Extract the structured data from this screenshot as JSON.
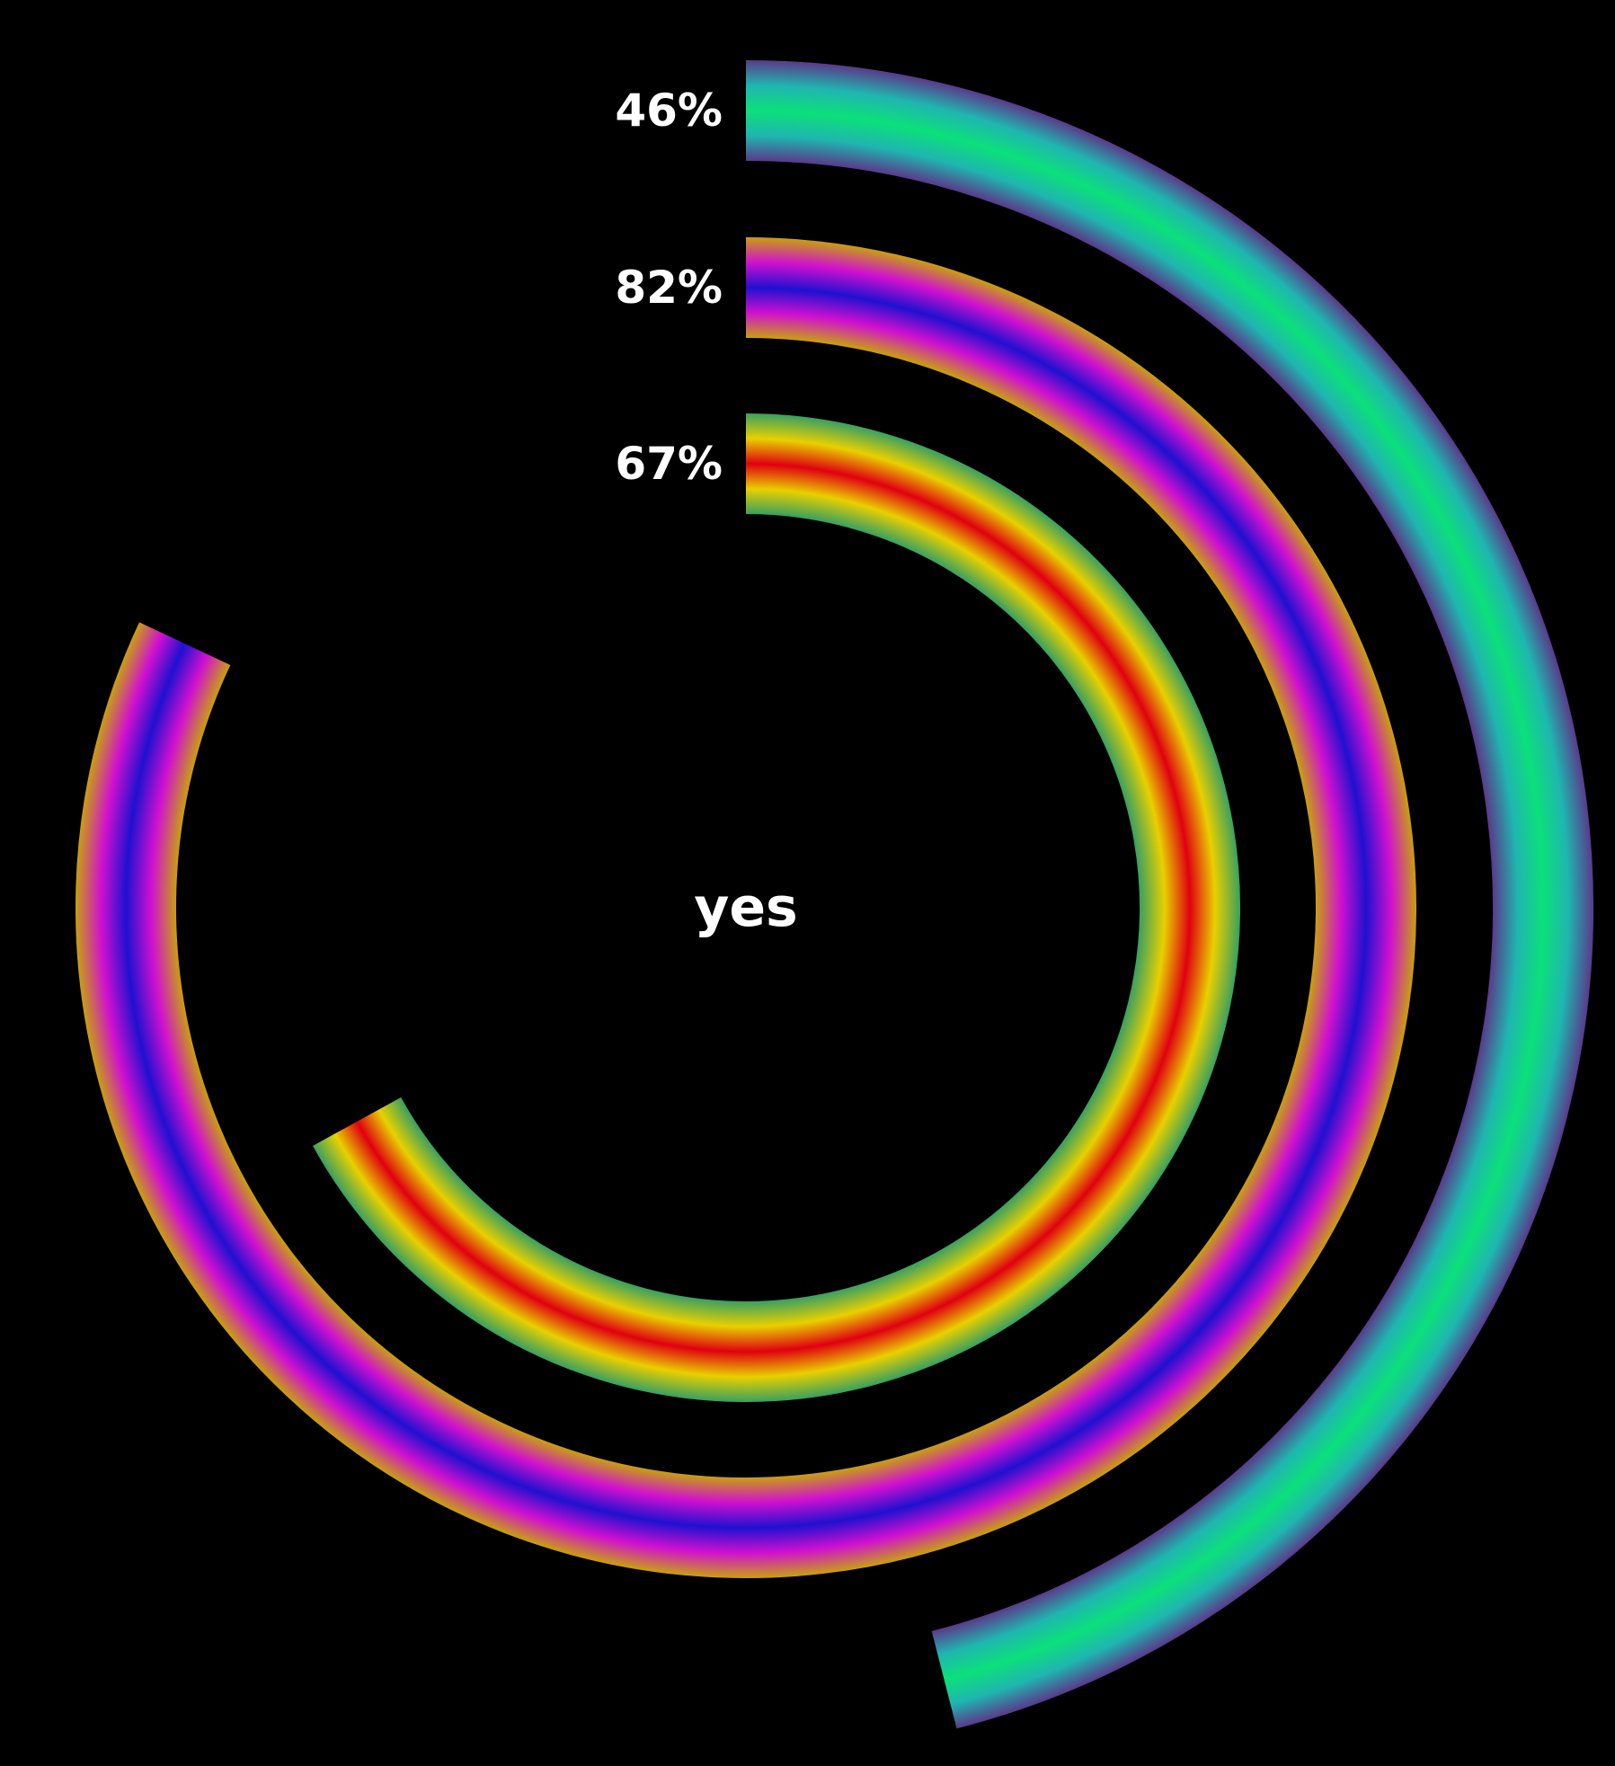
{
  "chart_data": {
    "type": "radial-bar",
    "center_label": "yes",
    "series": [
      {
        "label": "46%",
        "value": 46,
        "palette": [
          "#5a3a8a",
          "#1fb6b0",
          "#0be07a",
          "#1fb6b0",
          "#5a3a8a"
        ]
      },
      {
        "label": "82%",
        "value": 82,
        "palette": [
          "#c8a010",
          "#d010d0",
          "#2010d0",
          "#d010d0",
          "#c8a010"
        ]
      },
      {
        "label": "67%",
        "value": 67,
        "palette": [
          "#3aa060",
          "#e8d000",
          "#e00010",
          "#e8d000",
          "#3aa060"
        ]
      }
    ],
    "value_range": [
      0,
      100
    ],
    "start_angle": "top",
    "direction": "clockwise",
    "background": "#000000"
  }
}
